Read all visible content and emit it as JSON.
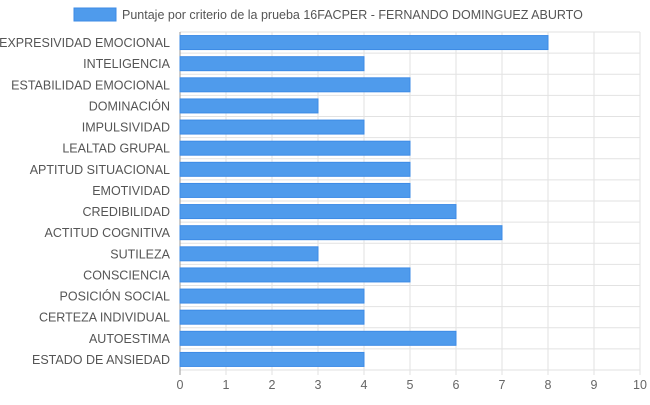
{
  "chart_data": {
    "type": "bar",
    "orientation": "horizontal",
    "legend": {
      "label": "Puntaje por criterio de la prueba 16FACPER - FERNANDO DOMINGUEZ ABURTO",
      "position": "top",
      "color": "#4F9BEC"
    },
    "categories": [
      "EXPRESIVIDAD EMOCIONAL",
      "INTELIGENCIA",
      "ESTABILIDAD EMOCIONAL",
      "DOMINACIÓN",
      "IMPULSIVIDAD",
      "LEALTAD GRUPAL",
      "APTITUD SITUACIONAL",
      "EMOTIVIDAD",
      "CREDIBILIDAD",
      "ACTITUD COGNITIVA",
      "SUTILEZA",
      "CONSCIENCIA",
      "POSICIÓN SOCIAL",
      "CERTEZA INDIVIDUAL",
      "AUTOESTIMA",
      "ESTADO DE ANSIEDAD"
    ],
    "series": [
      {
        "name": "Puntaje por criterio de la prueba 16FACPER - FERNANDO DOMINGUEZ ABURTO",
        "values": [
          8,
          4,
          5,
          3,
          4,
          5,
          5,
          5,
          6,
          7,
          3,
          5,
          4,
          4,
          6,
          4
        ],
        "color": "#4F9BEC",
        "border_color": "#3D8BE6"
      }
    ],
    "x_ticks": [
      "0",
      "1",
      "2",
      "3",
      "4",
      "5",
      "6",
      "7",
      "8",
      "9",
      "10"
    ],
    "xlim": [
      0,
      10
    ],
    "grid": true,
    "colors": {
      "grid": "#e2e2e2",
      "axis_line": "#999999",
      "label_text": "#555555",
      "tick_text": "#666666"
    }
  }
}
